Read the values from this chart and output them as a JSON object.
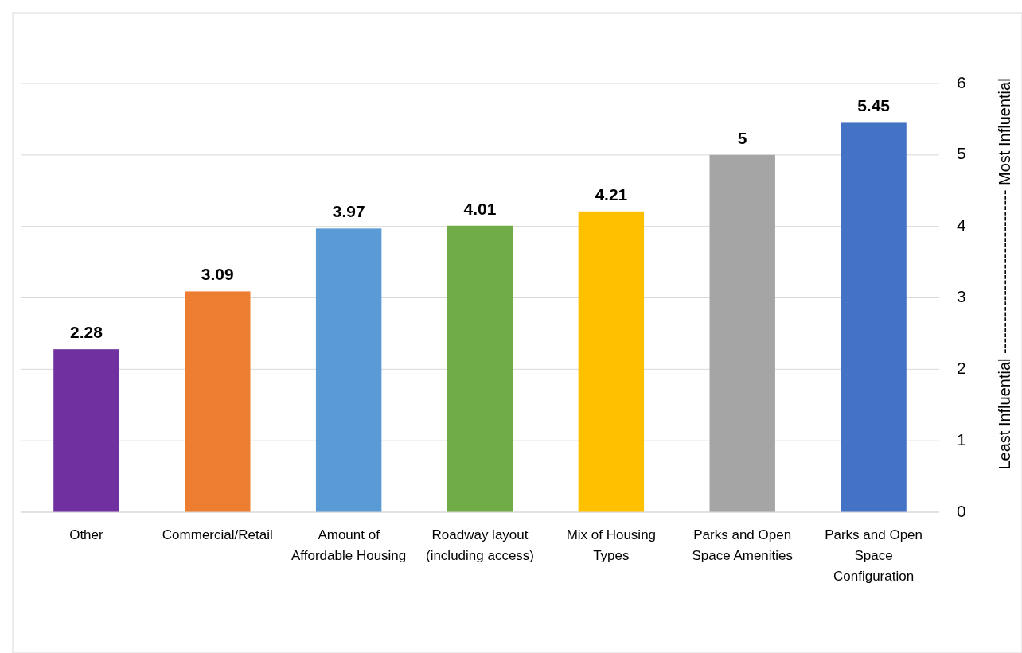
{
  "chart_data": {
    "type": "bar",
    "categories": [
      "Other",
      "Commercial/Retail",
      "Amount of Affordable Housing",
      "Roadway layout (including access)",
      "Mix of Housing Types",
      "Parks and Open Space Amenities",
      "Parks and Open Space Configuration"
    ],
    "values": [
      2.28,
      3.09,
      3.97,
      4.01,
      4.21,
      5,
      5.45
    ],
    "colors": [
      "#7030a0",
      "#ed7d31",
      "#5b9bd5",
      "#70ad47",
      "#ffc000",
      "#a5a5a5",
      "#4472c4"
    ],
    "ylabel": "Least Influential ------------------------------- Most Influential",
    "ylim": [
      0,
      6
    ],
    "yticks": [
      0,
      1,
      2,
      3,
      4,
      5,
      6
    ],
    "grid": "y",
    "data_labels": true
  }
}
